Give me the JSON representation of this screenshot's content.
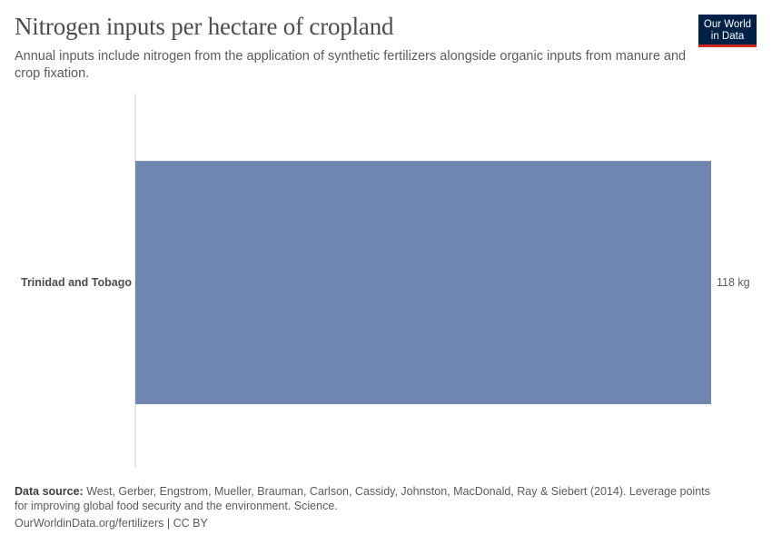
{
  "header": {
    "title": "Nitrogen inputs per hectare of cropland",
    "subtitle": "Annual inputs include nitrogen from the application of synthetic fertilizers alongside organic inputs from manure and crop fixation."
  },
  "logo": {
    "line1": "Our World",
    "line2": "in Data"
  },
  "chart_data": {
    "type": "bar",
    "orientation": "horizontal",
    "categories": [
      "Trinidad and Tobago"
    ],
    "series": [
      {
        "values": [
          118
        ]
      }
    ],
    "value_labels": [
      "118 kg"
    ],
    "unit": "kg",
    "xlim": [
      0,
      118
    ],
    "grid": false,
    "legend": "none",
    "bar_color": "#6f87b0"
  },
  "footer": {
    "source_label": "Data source:",
    "source_text": "West, Gerber, Engstrom, Mueller, Brauman, Carlson, Cassidy, Johnston, MacDonald, Ray & Siebert (2014). Leverage points for improving global food security and the environment. Science.",
    "url": "OurWorldinData.org/fertilizers",
    "separator": "|",
    "license": "CC BY"
  }
}
